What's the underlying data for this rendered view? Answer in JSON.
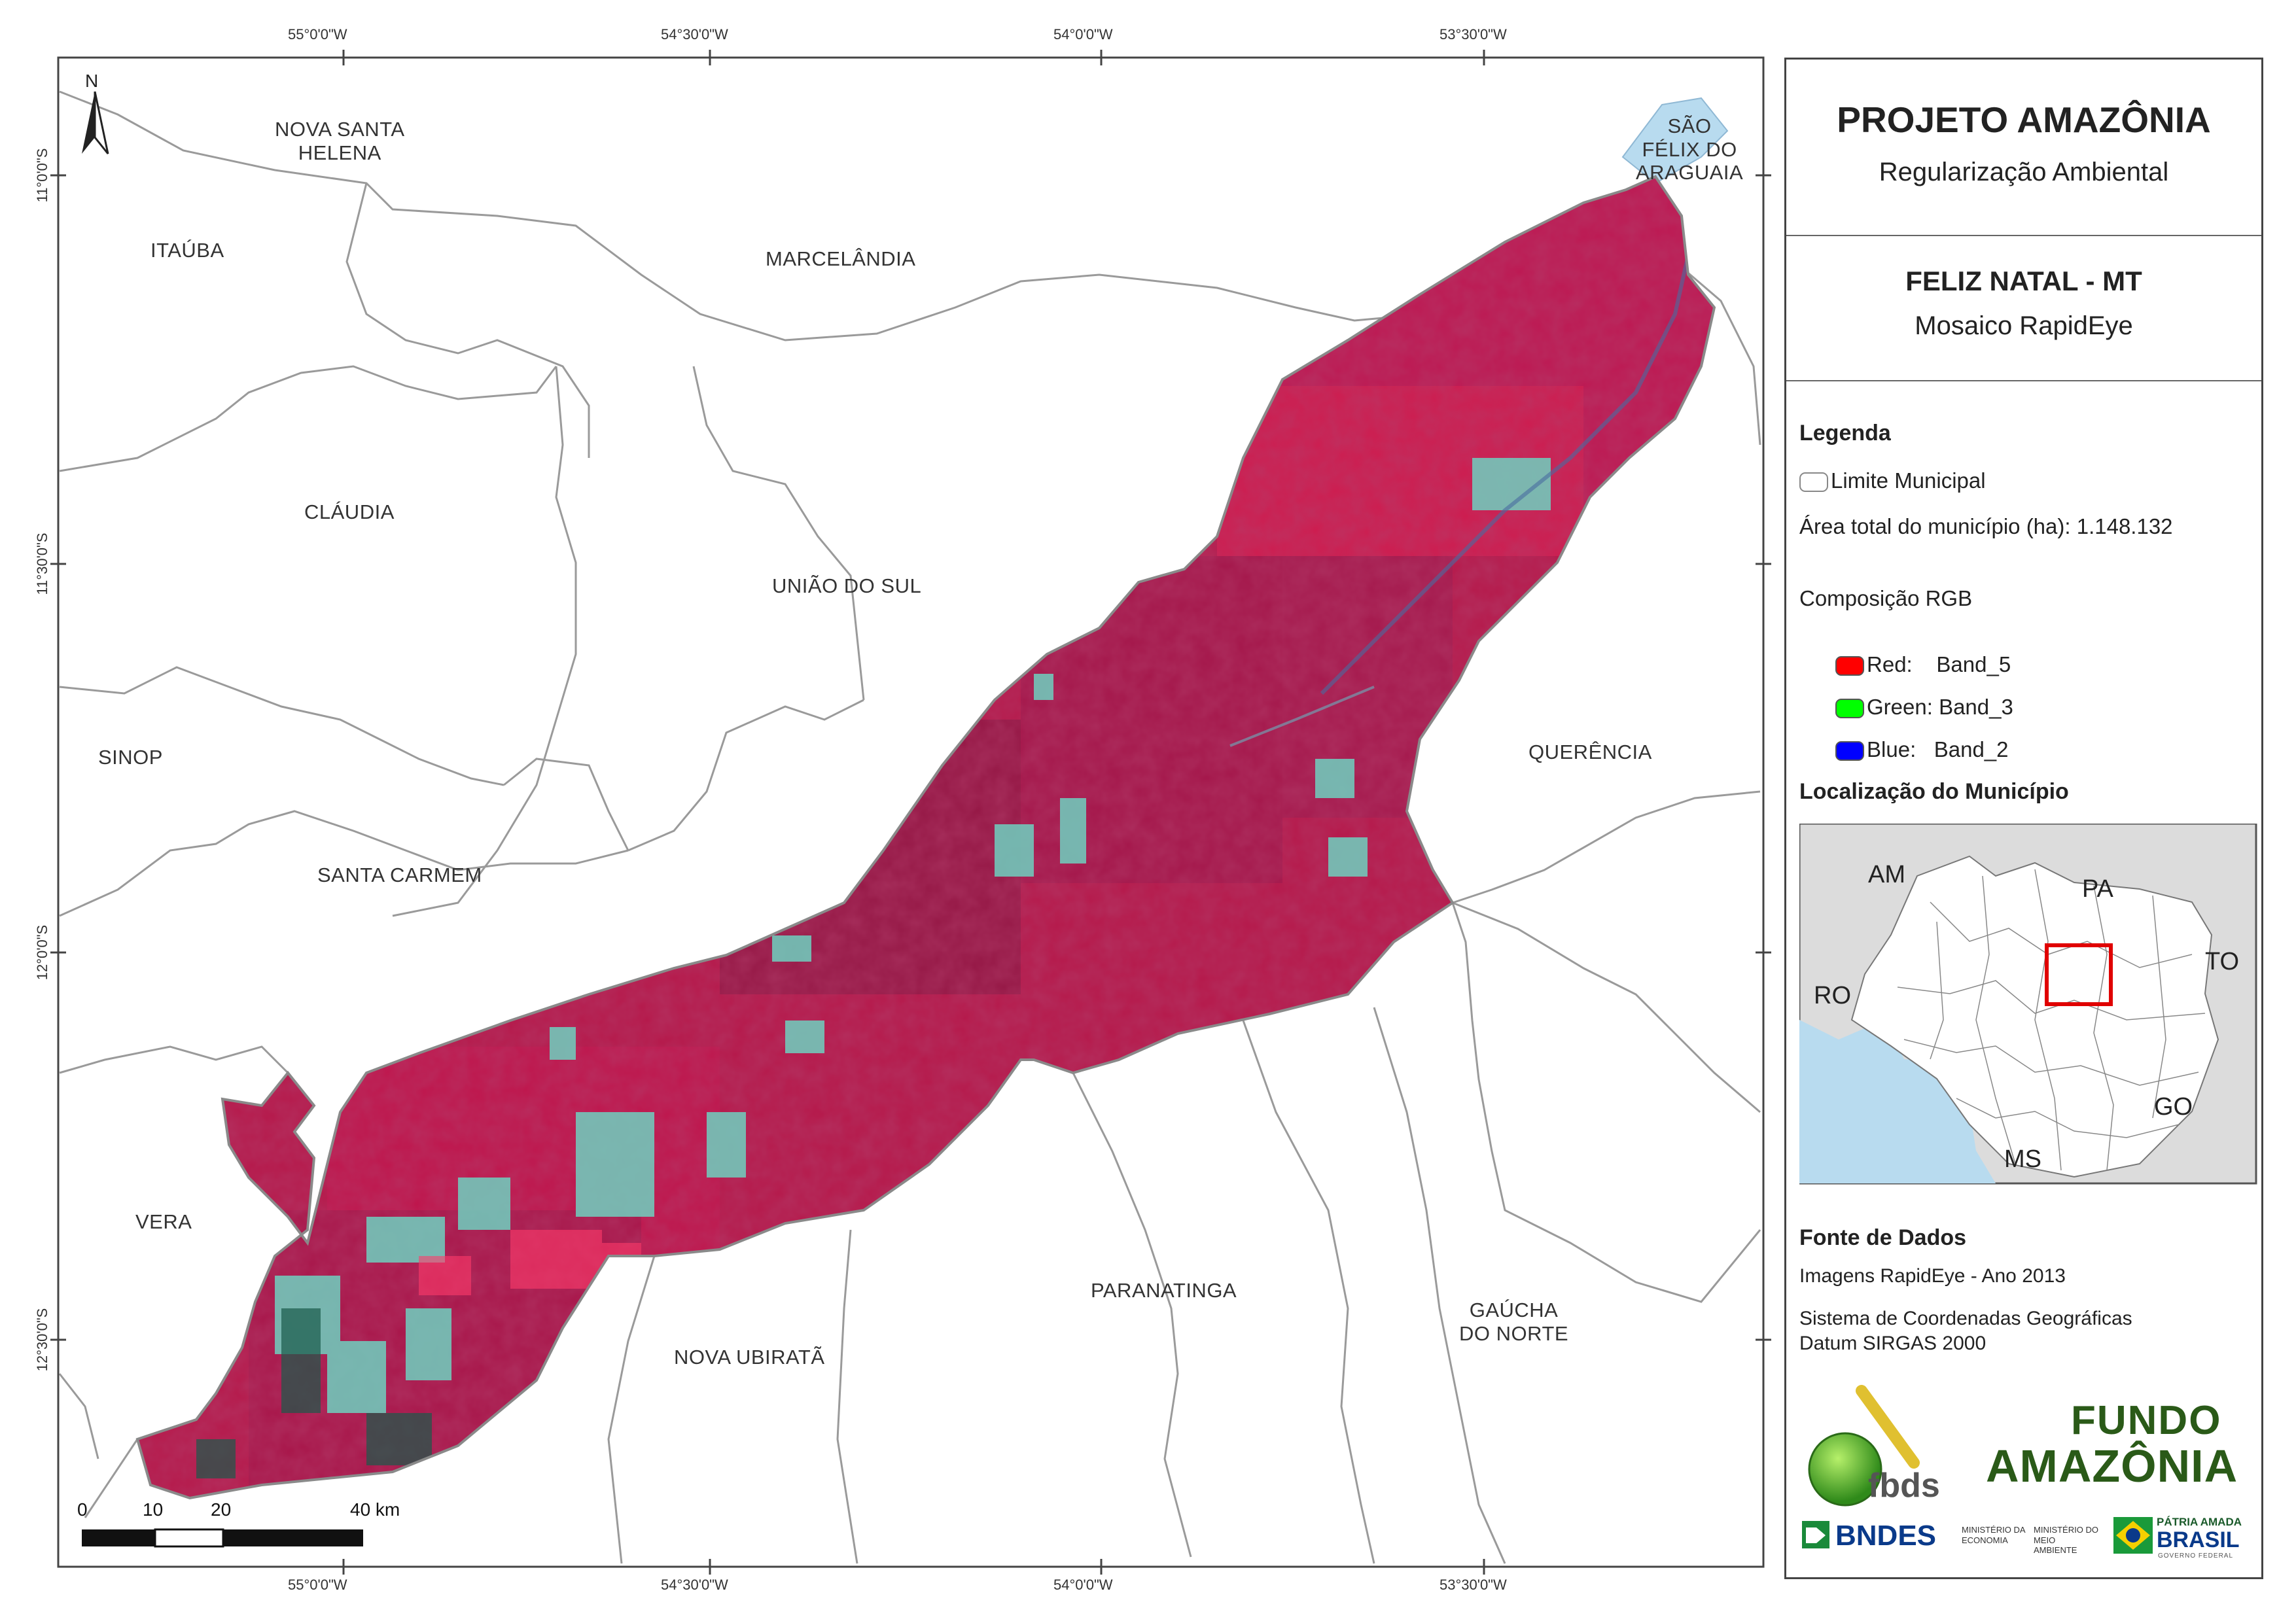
{
  "coordinates": {
    "longitudes": [
      "55°0'0\"W",
      "54°30'0\"W",
      "54°0'0\"W",
      "53°30'0\"W"
    ],
    "latitudes": [
      "11°0'0\"S",
      "11°30'0\"S",
      "12°0'0\"S",
      "12°30'0\"S"
    ]
  },
  "map": {
    "north_label": "N",
    "municipalities": [
      {
        "id": "nova-santa-helena",
        "name": "NOVA SANTA\nHELENA"
      },
      {
        "id": "itauba",
        "name": "ITAÚBA"
      },
      {
        "id": "marcelandia",
        "name": "MARCELÂNDIA"
      },
      {
        "id": "sao-felix",
        "name": "SÃO\nFÉLIX DO\nARAGUAIA"
      },
      {
        "id": "claudia",
        "name": "CLÁUDIA"
      },
      {
        "id": "uniao-do-sul",
        "name": "UNIÃO DO SUL"
      },
      {
        "id": "sinop",
        "name": "SINOP"
      },
      {
        "id": "querencia",
        "name": "QUERÊNCIA"
      },
      {
        "id": "santa-carmem",
        "name": "SANTA CARMEM"
      },
      {
        "id": "vera",
        "name": "VERA"
      },
      {
        "id": "paranatinga",
        "name": "PARANATINGA"
      },
      {
        "id": "gaucha-do-norte",
        "name": "GAÚCHA\nDO NORTE"
      },
      {
        "id": "nova-ubirata",
        "name": "NOVA UBIRATÃ"
      }
    ],
    "scale_bar": {
      "labels": [
        "0",
        "10",
        "20",
        "40 km"
      ]
    }
  },
  "panel": {
    "title": "PROJETO AMAZÔNIA",
    "subtitle": "Regularização Ambiental",
    "map_title": "FELIZ NATAL - MT",
    "map_subtitle": "Mosaico RapidEye",
    "legend": {
      "heading": "Legenda",
      "boundary_label": "Limite Municipal",
      "area_label": "Área total do município (ha): 1.148.132",
      "rgb_heading": "Composição RGB",
      "bands": [
        {
          "label": "Red:    Band_5",
          "color": "#ff0000"
        },
        {
          "label": "Green: Band_3",
          "color": "#00ff00"
        },
        {
          "label": "Blue:   Band_2",
          "color": "#0000ff"
        }
      ]
    },
    "location": {
      "heading": "Localização do Município",
      "labels": [
        "AM",
        "PA",
        "TO",
        "RO",
        "GO",
        "MS"
      ]
    },
    "sources": {
      "heading": "Fonte de Dados",
      "images": "Imagens RapidEye - Ano 2013",
      "crs1": "Sistema de Coordenadas Geográficas",
      "crs2": "Datum SIRGAS 2000"
    },
    "logos": {
      "fbds": "fbds",
      "fundo_line1": "FUNDO",
      "fundo_line2": "AMAZÔNIA",
      "bndes": "BNDES",
      "min_eco": "MINISTÉRIO DA ECONOMIA",
      "min_env": "MINISTÉRIO DO MEIO AMBIENTE",
      "patria_line1": "PÁTRIA AMADA",
      "patria_line2": "BRASIL",
      "patria_line3": "GOVERNO FEDERAL"
    }
  },
  "colors": {
    "forest": "#b5184a",
    "cleared": "#6fd0c0",
    "water": "#b8dbef",
    "boundary": "#aaaaaa"
  }
}
